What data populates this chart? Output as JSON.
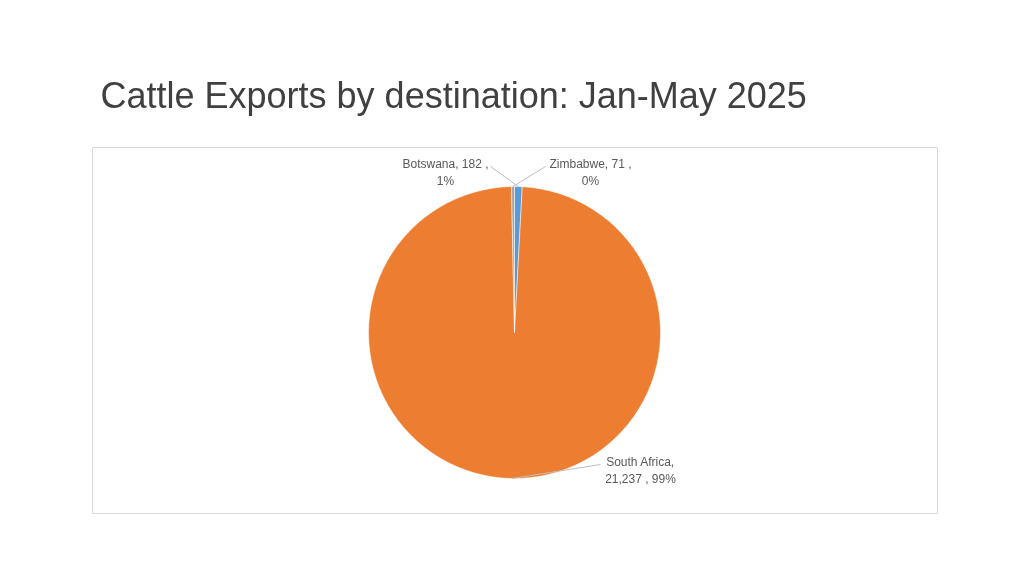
{
  "chart_data": {
    "type": "pie",
    "title": "Cattle Exports by destination: Jan-May 2025",
    "categories": [
      "Botswana",
      "South Africa",
      "Zimbabwe"
    ],
    "values": [
      182,
      21237,
      71
    ],
    "colors": [
      "#5b9bd5",
      "#ed7d31",
      "#a5a5a5"
    ],
    "value_labels": [
      ", 182 , 1%",
      ", 21,237 , 99%",
      ", 71 , 0%"
    ],
    "legend": false
  }
}
